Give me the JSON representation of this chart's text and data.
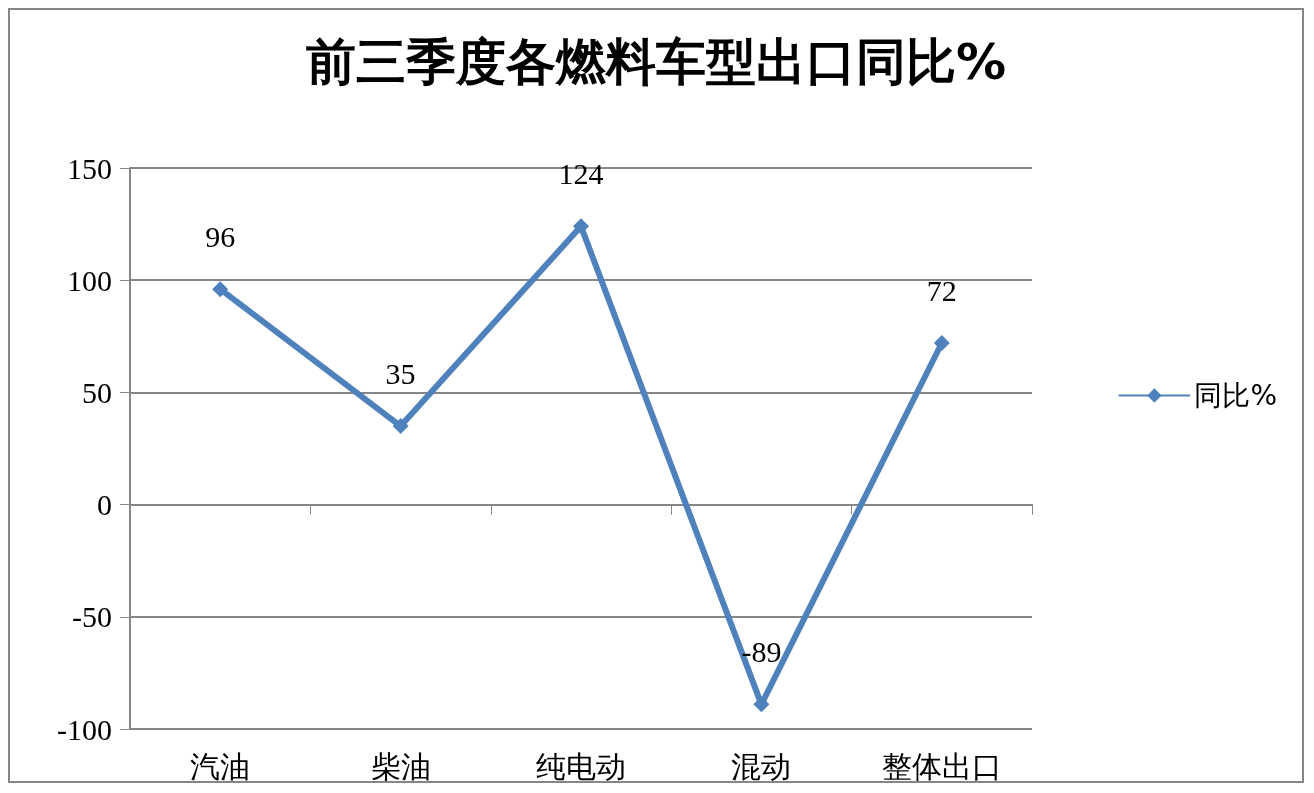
{
  "chart_data": {
    "type": "line",
    "title": "前三季度各燃料车型出口同比%",
    "categories": [
      "汽油",
      "柴油",
      "纯电动",
      "混动",
      "整体出口"
    ],
    "series": [
      {
        "name": "同比%",
        "color": "#4f81bd",
        "values": [
          96,
          35,
          124,
          -89,
          72
        ]
      }
    ],
    "ylim": [
      -100,
      150
    ],
    "yticks": [
      -100,
      -50,
      0,
      50,
      100,
      150
    ],
    "grid": "y",
    "legend": "right",
    "marker": "diamond",
    "line_style": "solid",
    "data_labels": true
  }
}
